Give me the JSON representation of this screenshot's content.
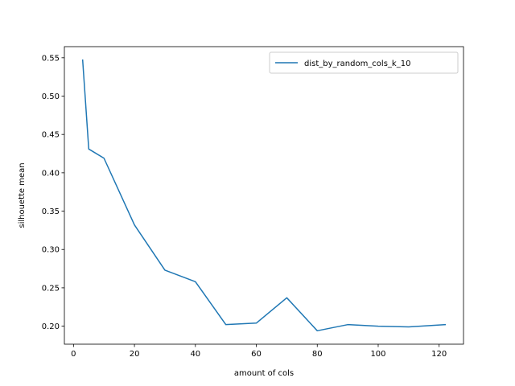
{
  "chart_data": {
    "type": "line",
    "title": "",
    "xlabel": "amount of cols",
    "ylabel": "silhouette mean",
    "xlim": [
      -3,
      128
    ],
    "ylim": [
      0.1765,
      0.5645
    ],
    "xticks": [
      0,
      20,
      40,
      60,
      80,
      100,
      120
    ],
    "xtick_labels": [
      "0",
      "20",
      "40",
      "60",
      "80",
      "100",
      "120"
    ],
    "yticks": [
      0.2,
      0.25,
      0.3,
      0.35,
      0.4,
      0.45,
      0.5,
      0.55
    ],
    "ytick_labels": [
      "0.20",
      "0.25",
      "0.30",
      "0.35",
      "0.40",
      "0.45",
      "0.50",
      "0.55"
    ],
    "grid": false,
    "legend_position": "top-right",
    "series": [
      {
        "name": "dist_by_random_cols_k_10",
        "color": "#1f77b4",
        "x": [
          3,
          5,
          10,
          20,
          30,
          40,
          50,
          60,
          70,
          80,
          90,
          100,
          110,
          122
        ],
        "y": [
          0.547,
          0.431,
          0.419,
          0.332,
          0.273,
          0.258,
          0.202,
          0.204,
          0.237,
          0.194,
          0.202,
          0.2,
          0.199,
          0.202
        ]
      }
    ]
  }
}
